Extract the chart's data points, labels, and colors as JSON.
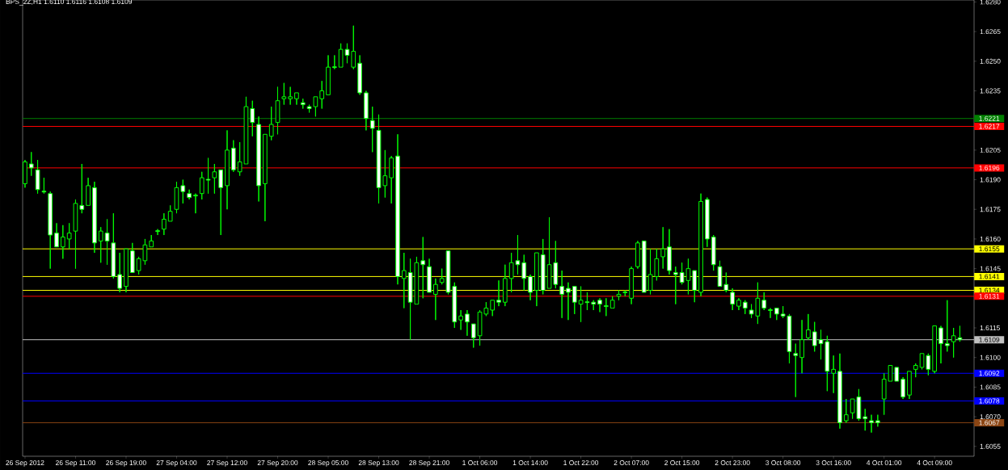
{
  "chart_data": {
    "type": "candlestick",
    "title": "BPS_2Z,H1 1.6110 1.6116 1.6108 1.6109",
    "color": "#00ff00",
    "grid": false,
    "categories": [
      "26 Sep 2012",
      null,
      null,
      null,
      null,
      null,
      null,
      null,
      "26 Sep 11:00",
      null,
      null,
      null,
      null,
      null,
      null,
      null,
      "26 Sep 19:00",
      null,
      null,
      null,
      null,
      null,
      null,
      null,
      "27 Sep 04:00",
      null,
      null,
      null,
      null,
      null,
      null,
      null,
      "27 Sep 12:00",
      null,
      null,
      null,
      null,
      null,
      null,
      null,
      "27 Sep 20:00",
      null,
      null,
      null,
      null,
      null,
      null,
      null,
      "28 Sep 05:00",
      null,
      null,
      null,
      null,
      null,
      null,
      null,
      "28 Sep 13:00",
      null,
      null,
      null,
      null,
      null,
      null,
      null,
      "28 Sep 21:00",
      null,
      null,
      null,
      null,
      null,
      null,
      null,
      "1 Oct 06:00",
      null,
      null,
      null,
      null,
      null,
      null,
      null,
      "1 Oct 14:00",
      null,
      null,
      null,
      null,
      null,
      null,
      null,
      "1 Oct 22:00",
      null,
      null,
      null,
      null,
      null,
      null,
      null,
      "2 Oct 07:00",
      null,
      null,
      null,
      null,
      null,
      null,
      null,
      "2 Oct 15:00",
      null,
      null,
      null,
      null,
      null,
      null,
      null,
      "2 Oct 23:00",
      null,
      null,
      null,
      null,
      null,
      null,
      null,
      "3 Oct 08:00",
      null,
      null,
      null,
      null,
      null,
      null,
      null,
      "3 Oct 16:00",
      null,
      null,
      null,
      null,
      null,
      null,
      null,
      "4 Oct 01:00",
      null,
      null,
      null,
      null,
      null,
      null,
      null,
      "4 Oct 09:00",
      null,
      null,
      null,
      null
    ],
    "ylim": [
      1.605,
      1.6281
    ],
    "yticks": [
      1.6055,
      {
        "value": 1.607,
        "label": "1.6070"
      },
      1.6085,
      {
        "value": 1.61,
        "label": "1.6100"
      },
      1.6115,
      1.6145,
      {
        "value": 1.616,
        "label": "1.6160"
      },
      1.6175,
      {
        "value": 1.619,
        "label": "1.6190"
      },
      1.6205,
      1.6235,
      {
        "value": 1.625,
        "label": "1.6250"
      },
      1.6265,
      {
        "value": 1.628,
        "label": "1.6280"
      }
    ],
    "ref_lines": [
      {
        "axis": "y",
        "value": 1.6221,
        "label": "1.6221",
        "color": "#008000"
      },
      {
        "axis": "y",
        "value": 1.6217,
        "label": "1.6217",
        "color": "#ff0000"
      },
      {
        "axis": "y",
        "value": 1.6196,
        "label": "1.6196",
        "color": "#ff0000"
      },
      {
        "axis": "y",
        "value": 1.6155,
        "label": "1.6155",
        "color": "#ffff00"
      },
      {
        "axis": "y",
        "value": 1.6141,
        "label": "1.6141",
        "color": "#ffff00"
      },
      {
        "axis": "y",
        "value": 1.6134,
        "label": "1.6134",
        "color": "#ffff00"
      },
      {
        "axis": "y",
        "value": 1.6131,
        "label": "1.6131",
        "color": "#ff0000"
      },
      {
        "axis": "y",
        "value": 1.6109,
        "label": "1.6109",
        "color": "#c0c0c0"
      },
      {
        "axis": "y",
        "value": 1.6092,
        "label": "1.6092",
        "color": "#0000ff"
      },
      {
        "axis": "y",
        "value": 1.6078,
        "label": "1.6078",
        "color": "#0000ff"
      },
      {
        "axis": "y",
        "value": 1.6067,
        "label": "1.6067",
        "color": "#8b4513"
      }
    ],
    "ohlc": [
      [
        1.6188,
        1.62,
        1.6186,
        1.6199
      ],
      [
        1.6198,
        1.6204,
        1.6192,
        1.6196
      ],
      [
        1.6195,
        1.62,
        1.6183,
        1.6185
      ],
      [
        1.6184,
        1.6191,
        1.6183,
        1.6184
      ],
      [
        1.6183,
        1.6184,
        1.6145,
        1.6162
      ],
      [
        1.6163,
        1.6168,
        1.6156,
        1.6156
      ],
      [
        1.6156,
        1.6167,
        1.615,
        1.6161
      ],
      [
        1.616,
        1.6168,
        1.6155,
        1.6163
      ],
      [
        1.6164,
        1.618,
        1.6145,
        1.6178
      ],
      [
        1.6177,
        1.6198,
        1.6173,
        1.6175
      ],
      [
        1.6177,
        1.6191,
        1.6177,
        1.6187
      ],
      [
        1.6186,
        1.6189,
        1.6153,
        1.6158
      ],
      [
        1.6159,
        1.6166,
        1.6148,
        1.6164
      ],
      [
        1.6163,
        1.617,
        1.6147,
        1.6159
      ],
      [
        1.6158,
        1.6173,
        1.614,
        1.6141
      ],
      [
        1.6142,
        1.6153,
        1.6133,
        1.6135
      ],
      [
        1.6136,
        1.6155,
        1.6133,
        1.6155
      ],
      [
        1.6154,
        1.6158,
        1.6143,
        1.6143
      ],
      [
        1.6144,
        1.6151,
        1.6142,
        1.615
      ],
      [
        1.6149,
        1.616,
        1.6147,
        1.6157
      ],
      [
        1.6156,
        1.6162,
        1.6156,
        1.6159
      ],
      [
        1.6164,
        1.6165,
        1.6162,
        1.6164
      ],
      [
        1.6165,
        1.6173,
        1.6162,
        1.617
      ],
      [
        1.6169,
        1.6177,
        1.6169,
        1.6174
      ],
      [
        1.6175,
        1.6189,
        1.6173,
        1.6186
      ],
      [
        1.6187,
        1.619,
        1.6178,
        1.6184
      ],
      [
        1.6183,
        1.6185,
        1.618,
        1.6181
      ],
      [
        1.6182,
        1.6183,
        1.6173,
        1.6182
      ],
      [
        1.6183,
        1.6194,
        1.618,
        1.6191
      ],
      [
        1.619,
        1.6201,
        1.6183,
        1.619
      ],
      [
        1.6191,
        1.6198,
        1.6183,
        1.6194
      ],
      [
        1.6195,
        1.6195,
        1.6162,
        1.6186
      ],
      [
        1.6187,
        1.6215,
        1.6175,
        1.6205
      ],
      [
        1.6206,
        1.621,
        1.6194,
        1.6195
      ],
      [
        1.6194,
        1.6209,
        1.6192,
        1.6199
      ],
      [
        1.6198,
        1.6232,
        1.6198,
        1.6227
      ],
      [
        1.6226,
        1.623,
        1.6212,
        1.6219
      ],
      [
        1.6218,
        1.6222,
        1.6179,
        1.6187
      ],
      [
        1.6188,
        1.6213,
        1.6169,
        1.6213
      ],
      [
        1.6212,
        1.6227,
        1.621,
        1.6218
      ],
      [
        1.6219,
        1.6237,
        1.6213,
        1.623
      ],
      [
        1.6231,
        1.6239,
        1.6228,
        1.6232
      ],
      [
        1.6231,
        1.6237,
        1.6228,
        1.6232
      ],
      [
        1.6231,
        1.6234,
        1.6228,
        1.6234
      ],
      [
        1.6229,
        1.6231,
        1.6226,
        1.6228
      ],
      [
        1.6227,
        1.6228,
        1.6224,
        1.6226
      ],
      [
        1.6227,
        1.6232,
        1.6222,
        1.6232
      ],
      [
        1.6231,
        1.624,
        1.6226,
        1.6235
      ],
      [
        1.6233,
        1.6253,
        1.6233,
        1.6247
      ],
      [
        1.6247,
        1.6253,
        1.6246,
        1.6247
      ],
      [
        1.6247,
        1.6259,
        1.6247,
        1.6256
      ],
      [
        1.6256,
        1.6259,
        1.6249,
        1.6253
      ],
      [
        1.6247,
        1.6268,
        1.6246,
        1.6255
      ],
      [
        1.6249,
        1.6253,
        1.6233,
        1.6234
      ],
      [
        1.6234,
        1.6235,
        1.6215,
        1.6221
      ],
      [
        1.622,
        1.6227,
        1.6204,
        1.6216
      ],
      [
        1.6215,
        1.6223,
        1.6178,
        1.6186
      ],
      [
        1.6187,
        1.6205,
        1.6181,
        1.6192
      ],
      [
        1.6191,
        1.6202,
        1.6178,
        1.6201
      ],
      [
        1.6202,
        1.6213,
        1.6137,
        1.6141
      ],
      [
        1.614,
        1.6153,
        1.6125,
        1.6144
      ],
      [
        1.6143,
        1.615,
        1.6109,
        1.6128
      ],
      [
        1.6127,
        1.6151,
        1.6127,
        1.6148
      ],
      [
        1.6149,
        1.6161,
        1.613,
        1.6147
      ],
      [
        1.6146,
        1.615,
        1.6133,
        1.6133
      ],
      [
        1.6132,
        1.614,
        1.6119,
        1.6137
      ],
      [
        1.6138,
        1.6145,
        1.6137,
        1.614
      ],
      [
        1.6154,
        1.6154,
        1.6132,
        1.6133
      ],
      [
        1.6136,
        1.6138,
        1.6115,
        1.6118
      ],
      [
        1.6119,
        1.6124,
        1.6114,
        1.6121
      ],
      [
        1.6122,
        1.6124,
        1.6111,
        1.6118
      ],
      [
        1.6117,
        1.6117,
        1.6105,
        1.611
      ],
      [
        1.6111,
        1.6124,
        1.6106,
        1.6123
      ],
      [
        1.6122,
        1.6128,
        1.6121,
        1.6125
      ],
      [
        1.6124,
        1.6129,
        1.6121,
        1.6129
      ],
      [
        1.6129,
        1.6139,
        1.6126,
        1.6128
      ],
      [
        1.6128,
        1.6147,
        1.6126,
        1.614
      ],
      [
        1.614,
        1.6153,
        1.6133,
        1.6148
      ],
      [
        1.6149,
        1.6162,
        1.6142,
        1.6147
      ],
      [
        1.6148,
        1.6152,
        1.6134,
        1.614
      ],
      [
        1.6141,
        1.6142,
        1.6129,
        1.6133
      ],
      [
        1.6134,
        1.6153,
        1.6126,
        1.6153
      ],
      [
        1.6152,
        1.616,
        1.6132,
        1.6134
      ],
      [
        1.6135,
        1.6171,
        1.6135,
        1.6147
      ],
      [
        1.6148,
        1.6159,
        1.6135,
        1.6137
      ],
      [
        1.6136,
        1.6144,
        1.612,
        1.6132
      ],
      [
        1.6135,
        1.6138,
        1.6119,
        1.6133
      ],
      [
        1.6136,
        1.6136,
        1.6122,
        1.6128
      ],
      [
        1.6127,
        1.6136,
        1.6118,
        1.6129
      ],
      [
        1.6128,
        1.6133,
        1.6124,
        1.6128
      ],
      [
        1.6128,
        1.6129,
        1.6124,
        1.6127
      ],
      [
        1.6129,
        1.613,
        1.6123,
        1.6127
      ],
      [
        1.6126,
        1.613,
        1.6121,
        1.6126
      ],
      [
        1.6125,
        1.6131,
        1.6125,
        1.6129
      ],
      [
        1.6131,
        1.6134,
        1.6129,
        1.6132
      ],
      [
        1.6133,
        1.6134,
        1.6131,
        1.6133
      ],
      [
        1.613,
        1.6146,
        1.6127,
        1.6145
      ],
      [
        1.6146,
        1.6159,
        1.6145,
        1.6158
      ],
      [
        1.6159,
        1.6159,
        1.6133,
        1.6133
      ],
      [
        1.6134,
        1.6155,
        1.6132,
        1.6142
      ],
      [
        1.6141,
        1.6155,
        1.6139,
        1.615
      ],
      [
        1.6151,
        1.6166,
        1.6145,
        1.6155
      ],
      [
        1.6156,
        1.6165,
        1.6142,
        1.6144
      ],
      [
        1.6143,
        1.6146,
        1.6127,
        1.6142
      ],
      [
        1.6143,
        1.6148,
        1.6137,
        1.6138
      ],
      [
        1.6139,
        1.615,
        1.6132,
        1.6145
      ],
      [
        1.6144,
        1.6144,
        1.6128,
        1.6134
      ],
      [
        1.6133,
        1.6183,
        1.6131,
        1.6179
      ],
      [
        1.618,
        1.6181,
        1.6156,
        1.616
      ],
      [
        1.6161,
        1.6162,
        1.6144,
        1.6147
      ],
      [
        1.6146,
        1.6149,
        1.6136,
        1.6136
      ],
      [
        1.6137,
        1.6143,
        1.6133,
        1.6134
      ],
      [
        1.6133,
        1.6135,
        1.6124,
        1.6127
      ],
      [
        1.6126,
        1.613,
        1.6124,
        1.6129
      ],
      [
        1.6128,
        1.6129,
        1.6122,
        1.6125
      ],
      [
        1.6124,
        1.6127,
        1.612,
        1.6122
      ],
      [
        1.6121,
        1.6138,
        1.6117,
        1.613
      ],
      [
        1.6129,
        1.6133,
        1.6124,
        1.6125
      ],
      [
        1.6124,
        1.6125,
        1.612,
        1.6124
      ],
      [
        1.6125,
        1.6125,
        1.6119,
        1.6122
      ],
      [
        1.6122,
        1.6126,
        1.612,
        1.6121
      ],
      [
        1.6121,
        1.6122,
        1.6097,
        1.6103
      ],
      [
        1.6102,
        1.6107,
        1.608,
        1.6101
      ],
      [
        1.61,
        1.6119,
        1.6092,
        1.6109
      ],
      [
        1.611,
        1.6122,
        1.6109,
        1.6114
      ],
      [
        1.6113,
        1.6118,
        1.6103,
        1.6106
      ],
      [
        1.6109,
        1.6114,
        1.6099,
        1.6107
      ],
      [
        1.6108,
        1.6111,
        1.6083,
        1.6093
      ],
      [
        1.6092,
        1.6101,
        1.6082,
        1.6094
      ],
      [
        1.6093,
        1.6102,
        1.6064,
        1.6067
      ],
      [
        1.6068,
        1.6079,
        1.6067,
        1.6071
      ],
      [
        1.6072,
        1.6079,
        1.6069,
        1.6079
      ],
      [
        1.608,
        1.6084,
        1.6068,
        1.6069
      ],
      [
        1.607,
        1.6074,
        1.6063,
        1.6069
      ],
      [
        1.6068,
        1.6071,
        1.6062,
        1.6067
      ],
      [
        1.6068,
        1.6071,
        1.6065,
        1.6067
      ],
      [
        1.6079,
        1.6092,
        1.6071,
        1.6089
      ],
      [
        1.6088,
        1.6096,
        1.6088,
        1.6096
      ],
      [
        1.6095,
        1.6095,
        1.6088,
        1.6088
      ],
      [
        1.6089,
        1.609,
        1.6079,
        1.608
      ],
      [
        1.6081,
        1.6093,
        1.6079,
        1.6093
      ],
      [
        1.6094,
        1.6097,
        1.609,
        1.6096
      ],
      [
        1.6095,
        1.6102,
        1.6094,
        1.6102
      ],
      [
        1.6101,
        1.6102,
        1.6091,
        1.6094
      ],
      [
        1.6093,
        1.6116,
        1.6092,
        1.6116
      ],
      [
        1.6115,
        1.6116,
        1.6097,
        1.6107
      ],
      [
        1.6107,
        1.6129,
        1.6103,
        1.6106
      ],
      [
        1.6108,
        1.6115,
        1.61,
        1.6111
      ],
      [
        1.611,
        1.6116,
        1.6108,
        1.6109
      ]
    ]
  }
}
